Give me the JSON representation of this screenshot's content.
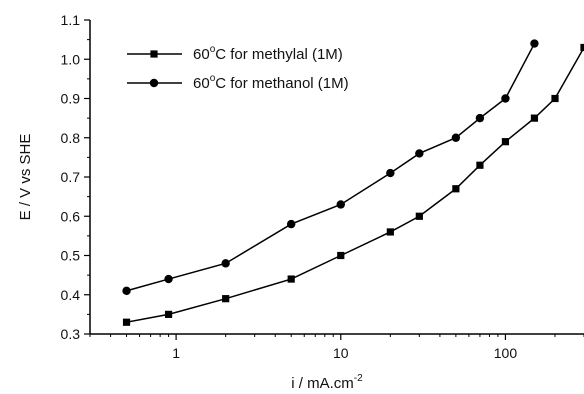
{
  "chart_data": {
    "type": "line",
    "xscale": "log",
    "xlabel": "i / mA.cm",
    "xlabel_superscript": "-2",
    "ylabel": "E / V vs SHE",
    "xlim": [
      0.3,
      300
    ],
    "ylim": [
      0.3,
      1.1
    ],
    "x_ticks": [
      1,
      10,
      100
    ],
    "x_tick_labels": [
      "1",
      "10",
      "100"
    ],
    "y_ticks": [
      0.3,
      0.4,
      0.5,
      0.6,
      0.7,
      0.8,
      0.9,
      1.0,
      1.1
    ],
    "y_tick_labels": [
      "0.3",
      "0.4",
      "0.5",
      "0.6",
      "0.7",
      "0.8",
      "0.9",
      "1.0",
      "1.1"
    ],
    "grid": false,
    "legend_position": "top-left",
    "series": [
      {
        "name": "60°C for methylal (1M)",
        "legend_main": "60",
        "legend_super": "o",
        "legend_rest": "C for methylal (1M)",
        "marker": "square",
        "color": "#000000",
        "x": [
          0.5,
          0.9,
          2,
          5,
          10,
          20,
          30,
          50,
          70,
          100,
          150,
          200,
          300
        ],
        "y": [
          0.33,
          0.35,
          0.39,
          0.44,
          0.5,
          0.56,
          0.6,
          0.67,
          0.73,
          0.79,
          0.85,
          0.9,
          1.03
        ]
      },
      {
        "name": "60°C for methanol (1M)",
        "legend_main": "60",
        "legend_super": "o",
        "legend_rest": "C for methanol (1M)",
        "marker": "circle",
        "color": "#000000",
        "x": [
          0.5,
          0.9,
          2,
          5,
          10,
          20,
          30,
          50,
          70,
          100,
          150
        ],
        "y": [
          0.41,
          0.44,
          0.48,
          0.58,
          0.63,
          0.71,
          0.76,
          0.8,
          0.85,
          0.9,
          1.04
        ]
      }
    ]
  }
}
